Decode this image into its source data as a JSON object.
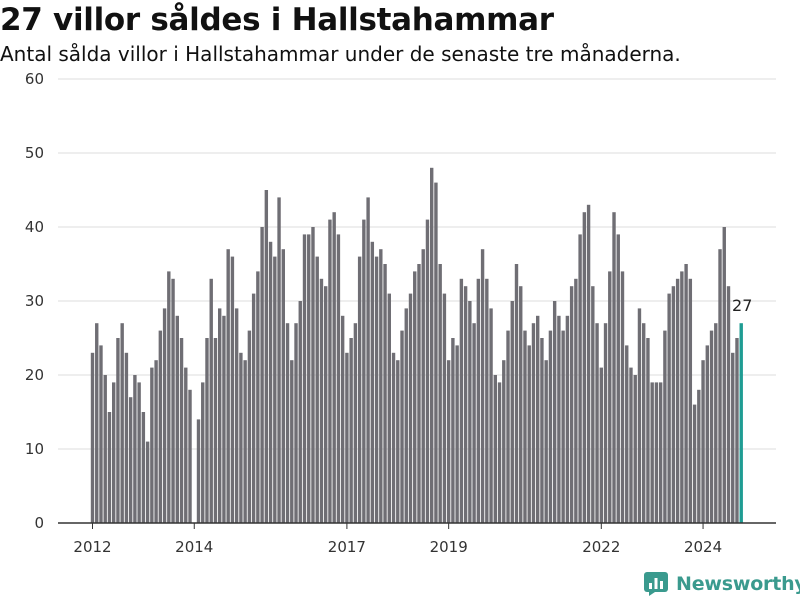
{
  "header": {
    "title": "27 villor såldes i Hallstahammar",
    "subtitle": "Antal sålda villor i Hallstahammar under de senaste tre månaderna."
  },
  "brand": {
    "name": "Newsworthy",
    "icon": "newsworthy-logo-icon",
    "color": "#3a9a8e"
  },
  "colors": {
    "bar": "#6f6e74",
    "highlight": "#1f9c93",
    "grid": "#dddddd",
    "axis": "#333333"
  },
  "chart_data": {
    "type": "bar",
    "title": "27 villor såldes i Hallstahammar",
    "subtitle": "Antal sålda villor i Hallstahammar under de senaste tre månaderna.",
    "xlabel": "",
    "ylabel": "",
    "ylim": [
      0,
      60
    ],
    "yticks": [
      "0",
      "10",
      "20",
      "30",
      "40",
      "50",
      "60"
    ],
    "xticks": [
      "2012",
      "2014",
      "2017",
      "2019",
      "2022",
      "2024"
    ],
    "grid": true,
    "legend": "none",
    "start": "2012-01",
    "frequency": "monthly",
    "values": [
      23,
      27,
      24,
      20,
      15,
      19,
      25,
      27,
      23,
      17,
      20,
      19,
      15,
      11,
      21,
      22,
      26,
      29,
      34,
      33,
      28,
      25,
      21,
      18,
      0,
      14,
      19,
      25,
      33,
      25,
      29,
      28,
      37,
      36,
      29,
      23,
      22,
      26,
      31,
      34,
      40,
      45,
      38,
      36,
      44,
      37,
      27,
      22,
      27,
      30,
      39,
      39,
      40,
      36,
      33,
      32,
      41,
      42,
      39,
      28,
      23,
      25,
      27,
      36,
      41,
      44,
      38,
      36,
      37,
      35,
      31,
      23,
      22,
      26,
      29,
      31,
      34,
      35,
      37,
      41,
      48,
      46,
      35,
      31,
      22,
      25,
      24,
      33,
      32,
      30,
      27,
      33,
      37,
      33,
      29,
      20,
      19,
      22,
      26,
      30,
      35,
      32,
      26,
      24,
      27,
      28,
      25,
      22,
      26,
      30,
      28,
      26,
      28,
      32,
      33,
      39,
      42,
      43,
      32,
      27,
      21,
      27,
      34,
      42,
      39,
      34,
      24,
      21,
      20,
      29,
      27,
      25,
      19,
      19,
      19,
      26,
      31,
      32,
      33,
      34,
      35,
      33,
      16,
      18,
      22,
      24,
      26,
      27,
      37,
      40,
      32,
      23,
      25,
      27
    ],
    "highlight_last": true,
    "last_label": "27"
  }
}
